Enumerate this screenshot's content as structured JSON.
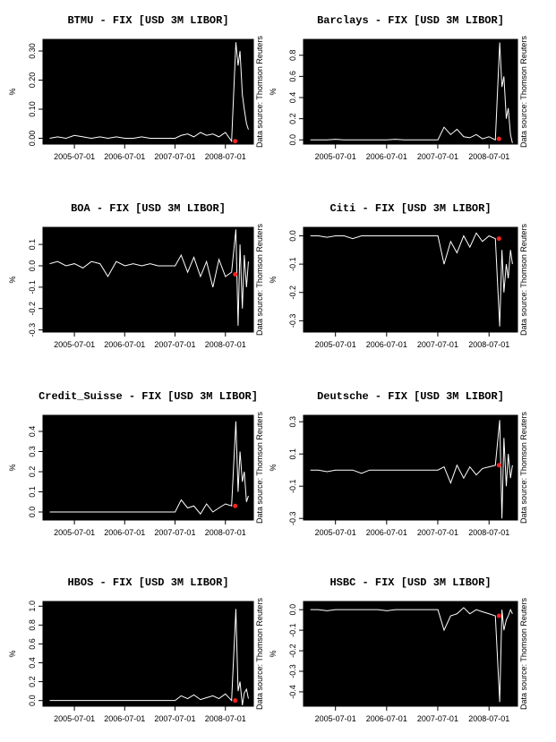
{
  "chart_data": [
    {
      "type": "line",
      "title": "BTMU - FIX [USD 3M LIBOR]",
      "ylabel": "%",
      "source": "Data source: Thomson Reuters",
      "background": "#000000",
      "color": "#ffffff",
      "x": [
        "2005-01-03",
        "2005-03-01",
        "2005-05-02",
        "2005-07-01",
        "2005-09-01",
        "2005-11-01",
        "2006-01-03",
        "2006-03-01",
        "2006-05-01",
        "2006-07-03",
        "2006-09-01",
        "2006-11-01",
        "2007-01-02",
        "2007-03-01",
        "2007-05-01",
        "2007-07-02",
        "2007-08-15",
        "2007-10-01",
        "2007-11-15",
        "2008-01-02",
        "2008-02-15",
        "2008-04-01",
        "2008-05-15",
        "2008-07-01",
        "2008-08-15",
        "2008-09-15",
        "2008-10-01",
        "2008-10-15",
        "2008-11-01",
        "2008-11-15",
        "2008-12-01",
        "2008-12-15"
      ],
      "values": [
        0,
        0.005,
        0,
        0.01,
        0.005,
        0,
        0.005,
        0,
        0.005,
        0,
        0,
        0.005,
        0,
        0,
        0,
        0,
        0.01,
        0.015,
        0.005,
        0.02,
        0.01,
        0.015,
        0.005,
        0.02,
        -0.01,
        0.33,
        0.25,
        0.3,
        0.15,
        0.1,
        0.05,
        0.03
      ],
      "xlim": [
        "2004-11-15",
        "2009-01-20"
      ],
      "xticks": [
        "2005-07-01",
        "2006-07-01",
        "2007-07-01",
        "2008-07-01"
      ],
      "ylim": [
        -0.02,
        0.34
      ],
      "yticks": [
        {
          "value": 0,
          "label": "0.00"
        },
        {
          "value": 0.1,
          "label": "0.10"
        },
        {
          "value": 0.2,
          "label": "0.20"
        },
        {
          "value": 0.3,
          "label": "0.30"
        }
      ],
      "marker": {
        "x": "2008-09-10",
        "y": -0.01,
        "color": "#ff2020"
      }
    },
    {
      "type": "line",
      "title": "Barclays - FIX [USD 3M LIBOR]",
      "ylabel": "%",
      "source": "Data source: Thomson Reuters",
      "background": "#000000",
      "color": "#ffffff",
      "x": [
        "2005-01-03",
        "2005-03-01",
        "2005-05-02",
        "2005-07-01",
        "2005-09-01",
        "2005-11-01",
        "2006-01-03",
        "2006-03-01",
        "2006-05-01",
        "2006-07-03",
        "2006-09-01",
        "2006-11-01",
        "2007-01-02",
        "2007-03-01",
        "2007-05-01",
        "2007-07-02",
        "2007-08-15",
        "2007-10-01",
        "2007-11-15",
        "2008-01-02",
        "2008-02-15",
        "2008-04-01",
        "2008-05-15",
        "2008-07-01",
        "2008-08-15",
        "2008-09-15",
        "2008-10-01",
        "2008-10-15",
        "2008-11-01",
        "2008-11-15",
        "2008-12-01",
        "2008-12-15"
      ],
      "values": [
        0,
        0,
        0,
        0.005,
        0,
        0,
        0,
        0,
        0,
        0,
        0.005,
        0,
        0,
        0,
        0,
        0,
        0.12,
        0.05,
        0.1,
        0.03,
        0.02,
        0.05,
        0.01,
        0.03,
        0,
        0.92,
        0.5,
        0.6,
        0.2,
        0.3,
        0.05,
        -0.03
      ],
      "xlim": [
        "2004-11-15",
        "2009-01-20"
      ],
      "xticks": [
        "2005-07-01",
        "2006-07-01",
        "2007-07-01",
        "2008-07-01"
      ],
      "ylim": [
        -0.04,
        0.95
      ],
      "yticks": [
        {
          "value": 0,
          "label": "0.0"
        },
        0.2,
        0.4,
        0.6,
        0.8
      ],
      "marker": {
        "x": "2008-09-10",
        "y": 0.01,
        "color": "#ff2020"
      }
    },
    {
      "type": "line",
      "title": "BOA - FIX [USD 3M LIBOR]",
      "ylabel": "%",
      "source": "Data source: Thomson Reuters",
      "background": "#000000",
      "color": "#ffffff",
      "x": [
        "2005-01-03",
        "2005-03-01",
        "2005-05-02",
        "2005-07-01",
        "2005-09-01",
        "2005-11-01",
        "2006-01-03",
        "2006-03-01",
        "2006-05-01",
        "2006-07-03",
        "2006-09-01",
        "2006-11-01",
        "2007-01-02",
        "2007-03-01",
        "2007-05-01",
        "2007-07-02",
        "2007-08-15",
        "2007-10-01",
        "2007-11-15",
        "2008-01-02",
        "2008-02-15",
        "2008-04-01",
        "2008-05-15",
        "2008-07-01",
        "2008-08-15",
        "2008-09-15",
        "2008-10-01",
        "2008-10-15",
        "2008-11-01",
        "2008-11-15",
        "2008-12-01",
        "2008-12-15"
      ],
      "values": [
        0.01,
        0.02,
        0,
        0.01,
        -0.01,
        0.02,
        0.01,
        -0.05,
        0.02,
        0,
        0.01,
        0,
        0.01,
        0,
        0,
        0,
        0.05,
        -0.03,
        0.04,
        -0.05,
        0.02,
        -0.1,
        0.03,
        -0.05,
        -0.03,
        0.17,
        -0.28,
        0.1,
        -0.2,
        0.05,
        -0.1,
        0.02
      ],
      "xlim": [
        "2004-11-15",
        "2009-01-20"
      ],
      "xticks": [
        "2005-07-01",
        "2006-07-01",
        "2007-07-01",
        "2008-07-01"
      ],
      "ylim": [
        -0.31,
        0.18
      ],
      "yticks": [
        -0.3,
        -0.2,
        -0.1,
        {
          "value": 0,
          "label": "0.0"
        },
        0.1
      ],
      "marker": {
        "x": "2008-09-10",
        "y": -0.04,
        "color": "#ff2020"
      }
    },
    {
      "type": "line",
      "title": "Citi - FIX [USD 3M LIBOR]",
      "ylabel": "%",
      "source": "Data source: Thomson Reuters",
      "background": "#000000",
      "color": "#ffffff",
      "x": [
        "2005-01-03",
        "2005-03-01",
        "2005-05-02",
        "2005-07-01",
        "2005-09-01",
        "2005-11-01",
        "2006-01-03",
        "2006-03-01",
        "2006-05-01",
        "2006-07-03",
        "2006-09-01",
        "2006-11-01",
        "2007-01-02",
        "2007-03-01",
        "2007-05-01",
        "2007-07-02",
        "2007-08-15",
        "2007-10-01",
        "2007-11-15",
        "2008-01-02",
        "2008-02-15",
        "2008-04-01",
        "2008-05-15",
        "2008-07-01",
        "2008-08-15",
        "2008-09-15",
        "2008-10-01",
        "2008-10-15",
        "2008-11-01",
        "2008-11-15",
        "2008-12-01",
        "2008-12-15"
      ],
      "values": [
        0,
        0,
        -0.005,
        0,
        0,
        -0.01,
        0,
        0,
        0,
        0,
        0,
        0,
        0,
        0,
        0,
        0,
        -0.1,
        -0.02,
        -0.06,
        0,
        -0.04,
        0.01,
        -0.02,
        0,
        -0.01,
        -0.32,
        -0.05,
        -0.2,
        -0.1,
        -0.15,
        -0.05,
        -0.1
      ],
      "xlim": [
        "2004-11-15",
        "2009-01-20"
      ],
      "xticks": [
        "2005-07-01",
        "2006-07-01",
        "2007-07-01",
        "2008-07-01"
      ],
      "ylim": [
        -0.34,
        0.03
      ],
      "yticks": [
        -0.3,
        -0.2,
        -0.1,
        {
          "value": 0,
          "label": "0.0"
        }
      ],
      "marker": {
        "x": "2008-09-10",
        "y": -0.01,
        "color": "#ff2020"
      }
    },
    {
      "type": "line",
      "title": "Credit_Suisse - FIX [USD 3M LIBOR]",
      "ylabel": "%",
      "source": "Data source: Thomson Reuters",
      "background": "#000000",
      "color": "#ffffff",
      "x": [
        "2005-01-03",
        "2005-03-01",
        "2005-05-02",
        "2005-07-01",
        "2005-09-01",
        "2005-11-01",
        "2006-01-03",
        "2006-03-01",
        "2006-05-01",
        "2006-07-03",
        "2006-09-01",
        "2006-11-01",
        "2007-01-02",
        "2007-03-01",
        "2007-05-01",
        "2007-07-02",
        "2007-08-15",
        "2007-10-01",
        "2007-11-15",
        "2008-01-02",
        "2008-02-15",
        "2008-04-01",
        "2008-05-15",
        "2008-07-01",
        "2008-08-15",
        "2008-09-15",
        "2008-10-01",
        "2008-10-15",
        "2008-11-01",
        "2008-11-15",
        "2008-12-01",
        "2008-12-15"
      ],
      "values": [
        0,
        0,
        0,
        0,
        0,
        0,
        0,
        0,
        0,
        0,
        0,
        0,
        0,
        0,
        0,
        0,
        0.06,
        0.02,
        0.03,
        -0.01,
        0.04,
        0,
        0.02,
        0.04,
        0.03,
        0.45,
        0.1,
        0.3,
        0.15,
        0.2,
        0.05,
        0.08
      ],
      "xlim": [
        "2004-11-15",
        "2009-01-20"
      ],
      "xticks": [
        "2005-07-01",
        "2006-07-01",
        "2007-07-01",
        "2008-07-01"
      ],
      "ylim": [
        -0.04,
        0.48
      ],
      "yticks": [
        {
          "value": 0,
          "label": "0.0"
        },
        0.1,
        0.2,
        0.3,
        0.4
      ],
      "marker": {
        "x": "2008-09-10",
        "y": 0.03,
        "color": "#ff2020"
      }
    },
    {
      "type": "line",
      "title": "Deutsche - FIX [USD 3M LIBOR]",
      "ylabel": "%",
      "source": "Data source: Thomson Reuters",
      "background": "#000000",
      "color": "#ffffff",
      "x": [
        "2005-01-03",
        "2005-03-01",
        "2005-05-02",
        "2005-07-01",
        "2005-09-01",
        "2005-11-01",
        "2006-01-03",
        "2006-03-01",
        "2006-05-01",
        "2006-07-03",
        "2006-09-01",
        "2006-11-01",
        "2007-01-02",
        "2007-03-01",
        "2007-05-01",
        "2007-07-02",
        "2007-08-15",
        "2007-10-01",
        "2007-11-15",
        "2008-01-02",
        "2008-02-15",
        "2008-04-01",
        "2008-05-15",
        "2008-07-01",
        "2008-08-15",
        "2008-09-15",
        "2008-10-01",
        "2008-10-15",
        "2008-11-01",
        "2008-11-15",
        "2008-12-01",
        "2008-12-15"
      ],
      "values": [
        0,
        0,
        -0.01,
        0,
        0,
        0,
        -0.02,
        0,
        0,
        0,
        0,
        0,
        0,
        0,
        0,
        0,
        0.02,
        -0.08,
        0.03,
        -0.05,
        0.02,
        -0.03,
        0.01,
        0.02,
        0.03,
        0.31,
        -0.3,
        0.2,
        -0.1,
        0.1,
        -0.05,
        0.03
      ],
      "xlim": [
        "2004-11-15",
        "2009-01-20"
      ],
      "xticks": [
        "2005-07-01",
        "2006-07-01",
        "2007-07-01",
        "2008-07-01"
      ],
      "ylim": [
        -0.31,
        0.34
      ],
      "yticks": [
        -0.3,
        -0.1,
        0.1,
        0.3
      ],
      "marker": {
        "x": "2008-09-10",
        "y": 0.03,
        "color": "#ff2020"
      }
    },
    {
      "type": "line",
      "title": "HBOS - FIX [USD 3M LIBOR]",
      "ylabel": "%",
      "source": "Data source: Thomson Reuters",
      "background": "#000000",
      "color": "#ffffff",
      "x": [
        "2005-01-03",
        "2005-03-01",
        "2005-05-02",
        "2005-07-01",
        "2005-09-01",
        "2005-11-01",
        "2006-01-03",
        "2006-03-01",
        "2006-05-01",
        "2006-07-03",
        "2006-09-01",
        "2006-11-01",
        "2007-01-02",
        "2007-03-01",
        "2007-05-01",
        "2007-07-02",
        "2007-08-15",
        "2007-10-01",
        "2007-11-15",
        "2008-01-02",
        "2008-02-15",
        "2008-04-01",
        "2008-05-15",
        "2008-07-01",
        "2008-08-15",
        "2008-09-15",
        "2008-10-01",
        "2008-10-15",
        "2008-11-01",
        "2008-11-15",
        "2008-12-01",
        "2008-12-15"
      ],
      "values": [
        0,
        0,
        0,
        0,
        0,
        0,
        0,
        0,
        0,
        0,
        0,
        0,
        0,
        0,
        0,
        0,
        0.05,
        0.02,
        0.06,
        0.01,
        0.03,
        0.05,
        0.02,
        0.07,
        0,
        0.97,
        0.1,
        0.2,
        -0.05,
        0.08,
        0.12,
        0.02
      ],
      "xlim": [
        "2004-11-15",
        "2009-01-20"
      ],
      "xticks": [
        "2005-07-01",
        "2006-07-01",
        "2007-07-01",
        "2008-07-01"
      ],
      "ylim": [
        -0.06,
        1.05
      ],
      "yticks": [
        {
          "value": 0,
          "label": "0.0"
        },
        0.2,
        0.4,
        0.6,
        0.8,
        {
          "value": 1,
          "label": "1.0"
        }
      ],
      "marker": {
        "x": "2008-09-10",
        "y": 0,
        "color": "#ff2020"
      }
    },
    {
      "type": "line",
      "title": "HSBC - FIX [USD 3M LIBOR]",
      "ylabel": "%",
      "source": "Data source: Thomson Reuters",
      "background": "#000000",
      "color": "#ffffff",
      "x": [
        "2005-01-03",
        "2005-03-01",
        "2005-05-02",
        "2005-07-01",
        "2005-09-01",
        "2005-11-01",
        "2006-01-03",
        "2006-03-01",
        "2006-05-01",
        "2006-07-03",
        "2006-09-01",
        "2006-11-01",
        "2007-01-02",
        "2007-03-01",
        "2007-05-01",
        "2007-07-02",
        "2007-08-15",
        "2007-10-01",
        "2007-11-15",
        "2008-01-02",
        "2008-02-15",
        "2008-04-01",
        "2008-05-15",
        "2008-07-01",
        "2008-08-15",
        "2008-09-15",
        "2008-10-01",
        "2008-10-15",
        "2008-11-01",
        "2008-11-15",
        "2008-12-01",
        "2008-12-15"
      ],
      "values": [
        0,
        0,
        -0.005,
        0,
        0,
        0,
        0,
        0,
        0,
        -0.005,
        0,
        0,
        0,
        0,
        0,
        0,
        -0.1,
        -0.03,
        -0.02,
        0.01,
        -0.02,
        0,
        -0.01,
        -0.02,
        -0.03,
        -0.45,
        0,
        -0.1,
        -0.05,
        -0.03,
        0,
        -0.02
      ],
      "xlim": [
        "2004-11-15",
        "2009-01-20"
      ],
      "xticks": [
        "2005-07-01",
        "2006-07-01",
        "2007-07-01",
        "2008-07-01"
      ],
      "ylim": [
        -0.47,
        0.04
      ],
      "yticks": [
        -0.4,
        -0.3,
        -0.2,
        -0.1,
        {
          "value": 0,
          "label": "0.0"
        }
      ],
      "marker": {
        "x": "2008-09-10",
        "y": -0.03,
        "color": "#ff2020"
      }
    }
  ]
}
